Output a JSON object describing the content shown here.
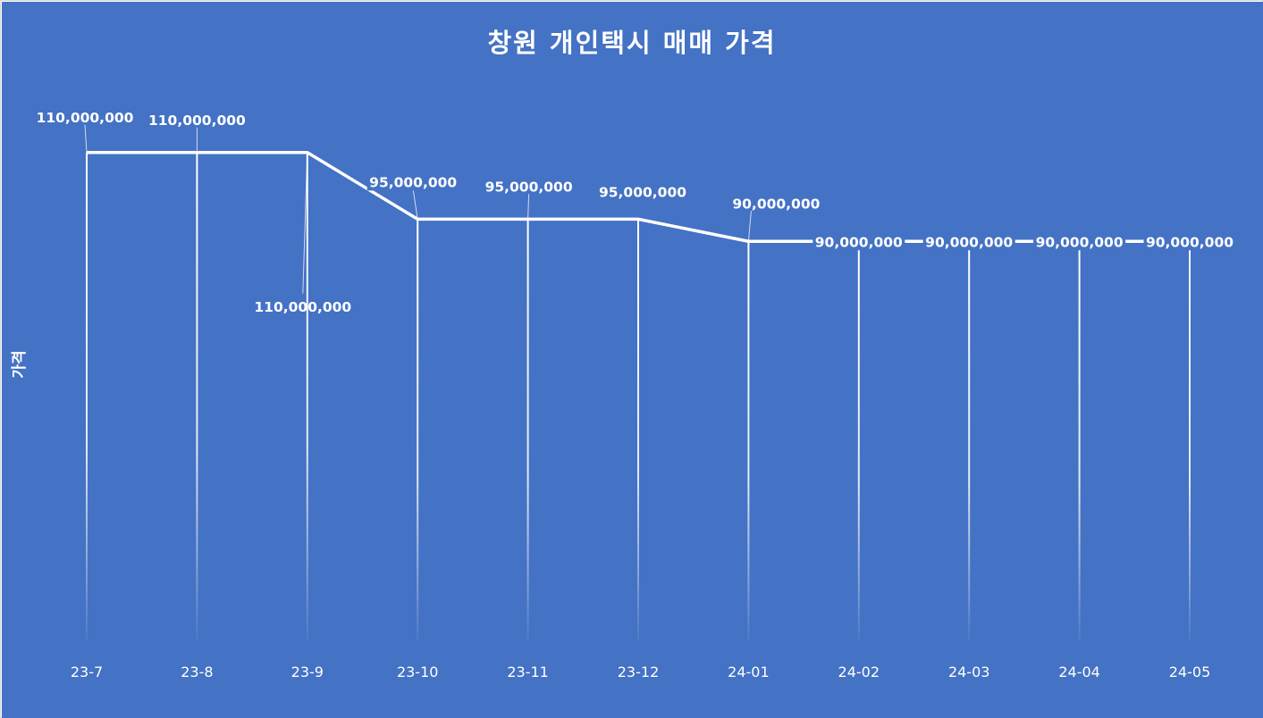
{
  "chart_data": {
    "type": "line",
    "title": "창원 개인택시 매매 가격",
    "xlabel": "",
    "ylabel": "가격",
    "categories": [
      "23-7",
      "23-8",
      "23-9",
      "23-10",
      "23-11",
      "23-12",
      "24-01",
      "24-02",
      "24-03",
      "24-04",
      "24-05"
    ],
    "series": [
      {
        "values": [
          110000000,
          110000000,
          110000000,
          95000000,
          95000000,
          95000000,
          90000000,
          90000000,
          90000000,
          90000000,
          90000000
        ],
        "data_labels": [
          "110,000,000",
          "110,000,000",
          "110,000,000",
          "95,000,000",
          "95,000,000",
          "95,000,000",
          "90,000,000",
          "90,000,000",
          "90,000,000",
          "90,000,000",
          "90,000,000"
        ]
      }
    ],
    "ylim": [
      0,
      125000000
    ],
    "grid": false,
    "drop_lines": true,
    "legend": "none"
  },
  "colors": {
    "background": "#4472C4",
    "line": "#FFFFFF",
    "text": "#FFFFFF"
  }
}
